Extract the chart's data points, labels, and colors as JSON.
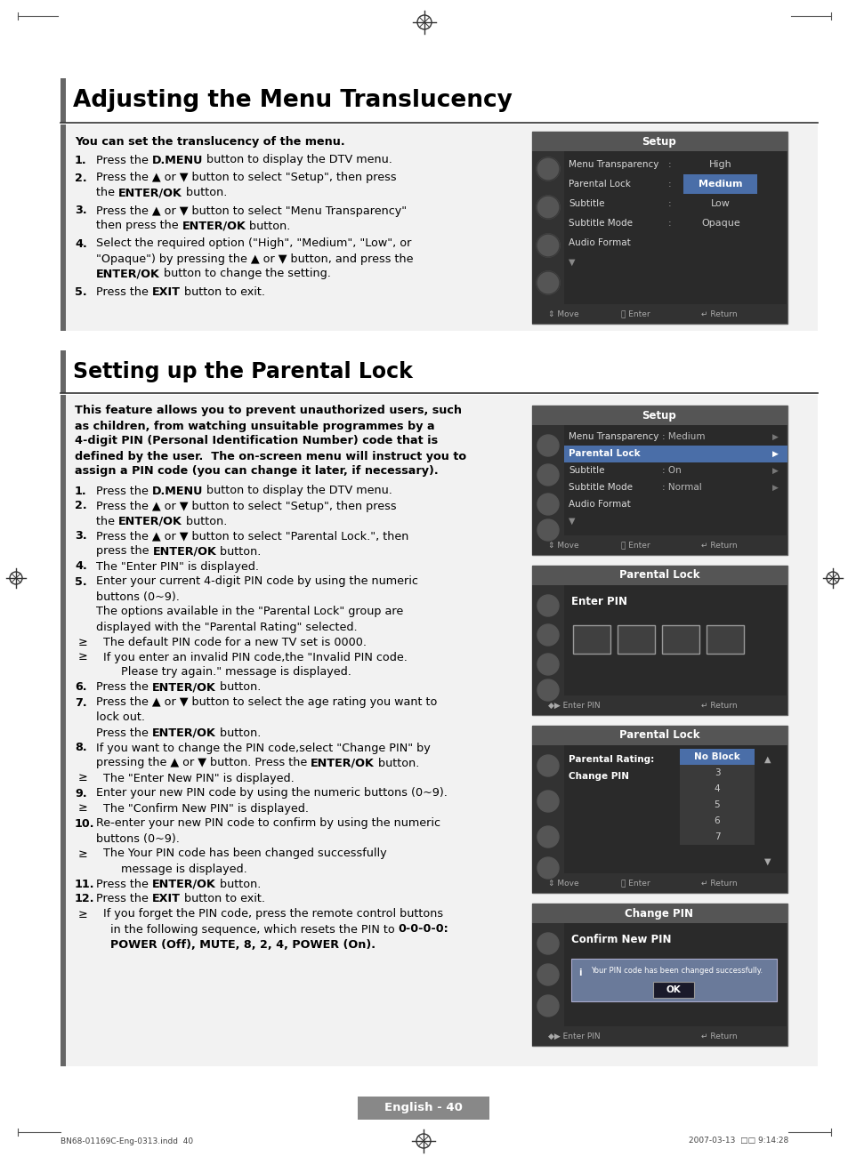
{
  "page_bg": "#ffffff",
  "page_width": 9.54,
  "page_height": 13.01,
  "dpi": 100,
  "title1": "Adjusting the Menu Translucency",
  "title2": "Setting up the Parental Lock",
  "footer_text": "English - 40",
  "bottom_left": "BN68-01169C-Eng-0313.indd  40",
  "bottom_right": "2007-03-13  □□ 9:14:28",
  "gray_bar_color": "#666666",
  "section_bg": "#f2f2f2",
  "dark_bg": "#3a3a3a",
  "menu_dark": "#2d2d2d",
  "highlight_blue": "#4a6ea8",
  "title_bar_color": "#666666",
  "white": "#ffffff",
  "light_gray_text": "#aaaaaa",
  "medium_gray": "#888888",
  "border_gray": "#777777"
}
